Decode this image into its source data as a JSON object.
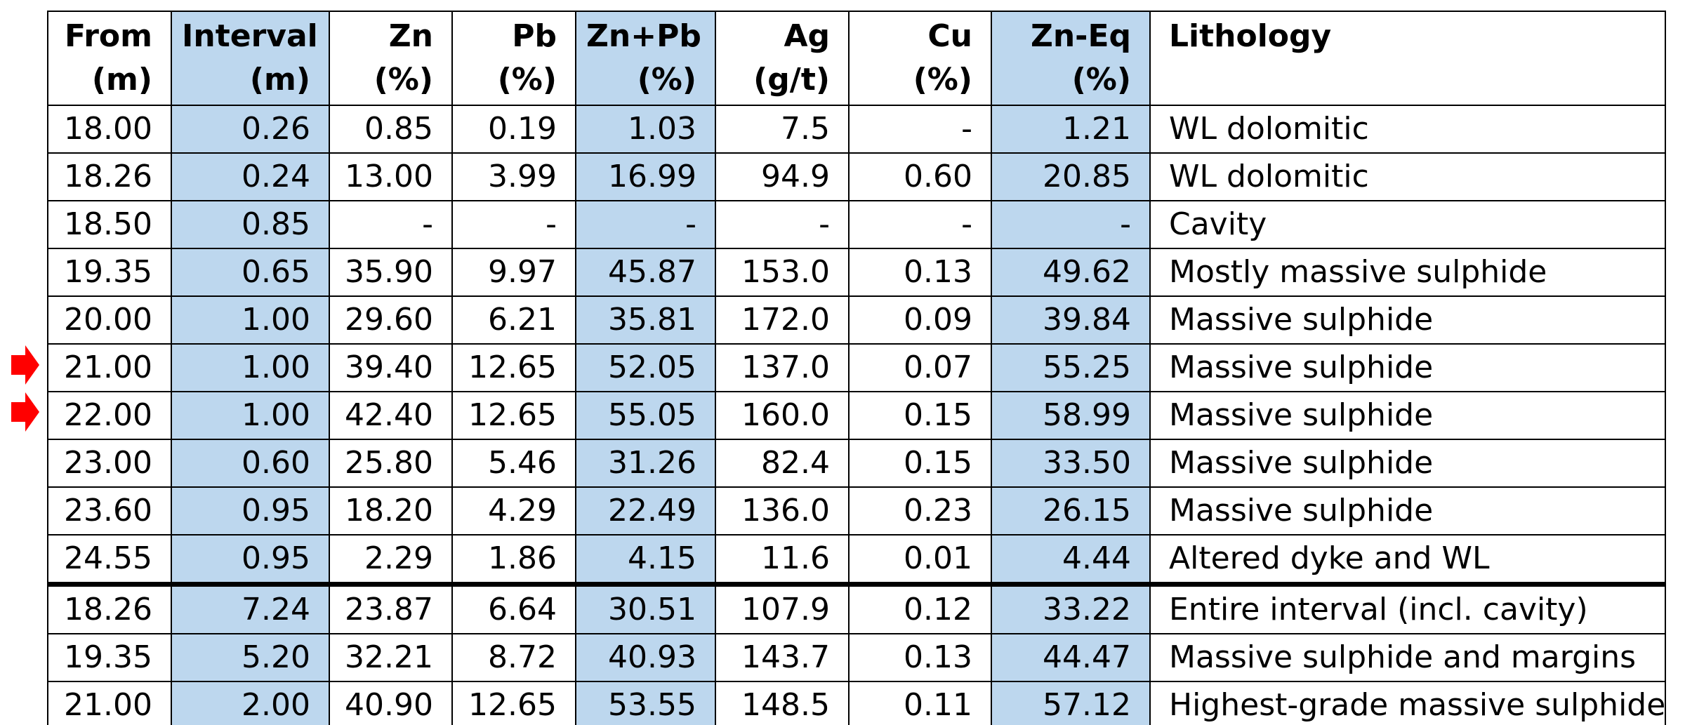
{
  "table": {
    "headers": [
      [
        "From",
        "(m)"
      ],
      [
        "Interval",
        "(m)"
      ],
      [
        "Zn",
        "(%)"
      ],
      [
        "Pb",
        "(%)"
      ],
      [
        "Zn+Pb",
        "(%)"
      ],
      [
        "Ag",
        "(g/t)"
      ],
      [
        "Cu",
        "(%)"
      ],
      [
        "Zn-Eq",
        "(%)"
      ],
      [
        "Lithology",
        ""
      ]
    ],
    "highlight_columns": [
      1,
      4,
      7
    ],
    "highlight_color": "#bdd7ee",
    "rows": [
      [
        "18.00",
        "0.26",
        "0.85",
        "0.19",
        "1.03",
        "7.5",
        "-",
        "1.21",
        "WL dolomitic"
      ],
      [
        "18.26",
        "0.24",
        "13.00",
        "3.99",
        "16.99",
        "94.9",
        "0.60",
        "20.85",
        "WL dolomitic"
      ],
      [
        "18.50",
        "0.85",
        "-",
        "-",
        "-",
        "-",
        "-",
        "-",
        "Cavity"
      ],
      [
        "19.35",
        "0.65",
        "35.90",
        "9.97",
        "45.87",
        "153.0",
        "0.13",
        "49.62",
        "Mostly massive sulphide"
      ],
      [
        "20.00",
        "1.00",
        "29.60",
        "6.21",
        "35.81",
        "172.0",
        "0.09",
        "39.84",
        "Massive sulphide"
      ],
      [
        "21.00",
        "1.00",
        "39.40",
        "12.65",
        "52.05",
        "137.0",
        "0.07",
        "55.25",
        "Massive sulphide"
      ],
      [
        "22.00",
        "1.00",
        "42.40",
        "12.65",
        "55.05",
        "160.0",
        "0.15",
        "58.99",
        "Massive sulphide"
      ],
      [
        "23.00",
        "0.60",
        "25.80",
        "5.46",
        "31.26",
        "82.4",
        "0.15",
        "33.50",
        "Massive sulphide"
      ],
      [
        "23.60",
        "0.95",
        "18.20",
        "4.29",
        "22.49",
        "136.0",
        "0.23",
        "26.15",
        "Massive sulphide"
      ],
      [
        "24.55",
        "0.95",
        "2.29",
        "1.86",
        "4.15",
        "11.6",
        "0.01",
        "4.44",
        "Altered dyke and WL"
      ]
    ],
    "summary_rows": [
      [
        "18.26",
        "7.24",
        "23.87",
        "6.64",
        "30.51",
        "107.9",
        "0.12",
        "33.22",
        "Entire interval (incl. cavity)"
      ],
      [
        "19.35",
        "5.20",
        "32.21",
        "8.72",
        "40.93",
        "143.7",
        "0.13",
        "44.47",
        "Massive sulphide and margins"
      ],
      [
        "21.00",
        "2.00",
        "40.90",
        "12.65",
        "53.55",
        "148.5",
        "0.11",
        "57.12",
        "Highest-grade massive sulphide"
      ]
    ],
    "marked_rows": [
      "21.00",
      "22.00"
    ],
    "marker_icon": "red-arrow-icon",
    "marker_color": "#ff0000"
  }
}
